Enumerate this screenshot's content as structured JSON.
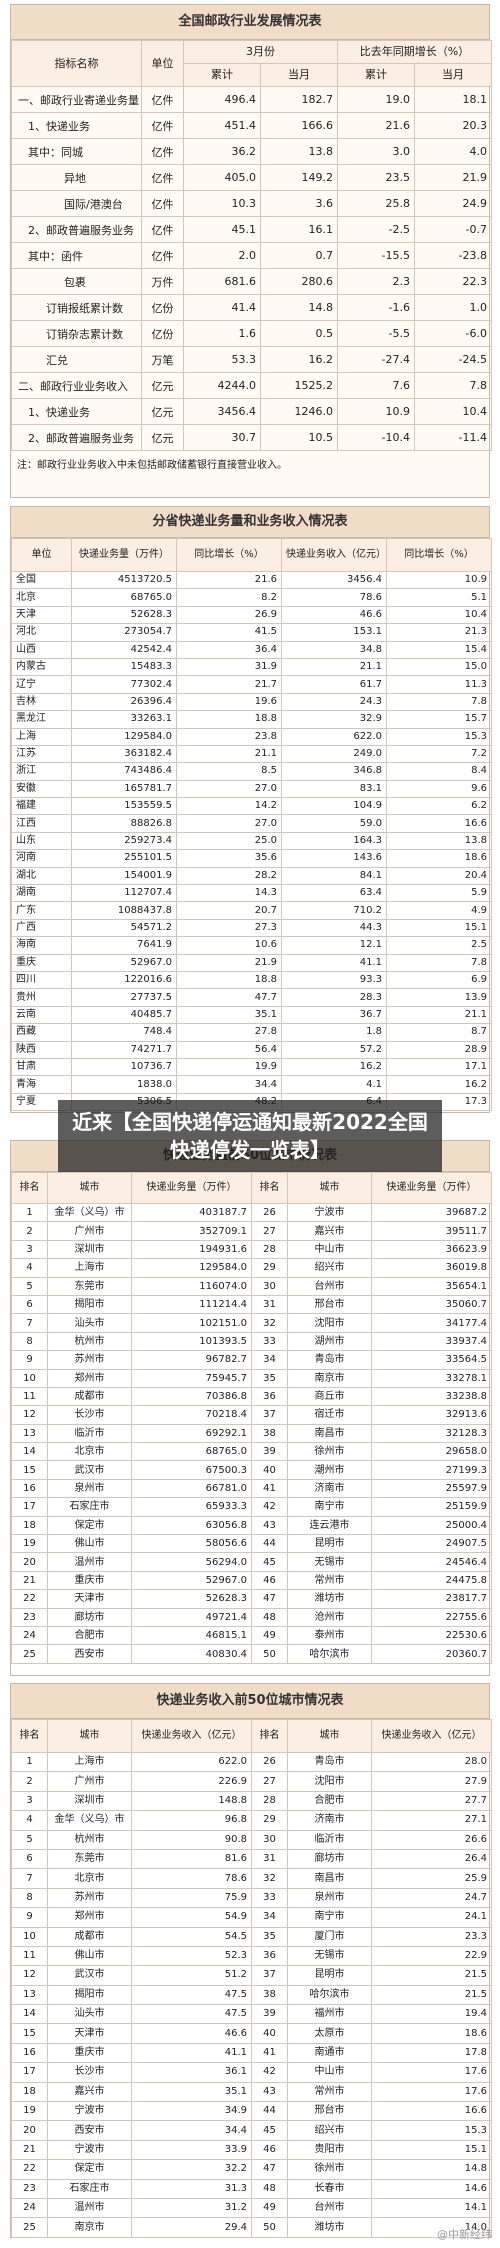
{
  "tables": [
    {
      "title": "全国邮政行业发展情况表",
      "header": [
        "指标名称",
        "单位",
        "3月份",
        "比去年同期增长（%）",
        "累计",
        "当月",
        "累计",
        "当月"
      ],
      "rows": [
        [
          "一、邮政行业寄递业务量",
          "亿件",
          "496.4",
          "182.7",
          "19.0",
          "18.1"
        ],
        [
          "1、快递业务",
          "亿件",
          "451.4",
          "166.6",
          "21.6",
          "20.3"
        ],
        [
          "其中：同城",
          "亿件",
          "36.2",
          "13.8",
          "3.0",
          "4.0"
        ],
        [
          "异地",
          "亿件",
          "405.0",
          "149.2",
          "23.5",
          "21.9"
        ],
        [
          "国际/港澳台",
          "亿件",
          "10.3",
          "3.6",
          "25.8",
          "24.9"
        ],
        [
          "2、邮政普遍服务业务",
          "亿件",
          "45.1",
          "16.1",
          "-2.5",
          "-0.7"
        ],
        [
          "其中：函件",
          "亿件",
          "2.0",
          "0.7",
          "-15.5",
          "-23.8"
        ],
        [
          "包裹",
          "万件",
          "681.6",
          "280.6",
          "2.3",
          "22.3"
        ],
        [
          "订销报纸累计数",
          "亿份",
          "41.4",
          "14.8",
          "-1.6",
          "1.0"
        ],
        [
          "订销杂志累计数",
          "亿份",
          "1.6",
          "0.5",
          "-5.5",
          "-6.0"
        ],
        [
          "汇兑",
          "万笔",
          "53.3",
          "16.2",
          "-27.4",
          "-24.5"
        ],
        [
          "二、邮政行业业务收入",
          "亿元",
          "4244.0",
          "1525.2",
          "7.6",
          "7.8"
        ],
        [
          "1、快递业务",
          "亿元",
          "3456.4",
          "1246.0",
          "10.9",
          "10.4"
        ],
        [
          "2、邮政普遍服务业务",
          "亿元",
          "30.7",
          "10.5",
          "-10.4",
          "-11.4"
        ]
      ],
      "note": "注：邮政行业业务收入中未包括邮政储蓄银行直接营业收入。"
    },
    {
      "title": "分省快递业务量和业务收入情况表",
      "header": [
        "单位",
        "快递业务量（万件）",
        "同比增长（%）",
        "快递业务收入（亿元）",
        "同比增长（%）"
      ],
      "rows": [
        [
          "全国",
          "4513720.5",
          "21.6",
          "3456.4",
          "10.9"
        ],
        [
          "北京",
          "68765.0",
          "8.2",
          "78.6",
          "5.1"
        ],
        [
          "天津",
          "52628.3",
          "26.9",
          "46.6",
          "10.4"
        ],
        [
          "河北",
          "273054.7",
          "41.5",
          "153.1",
          "21.3"
        ],
        [
          "山西",
          "42542.4",
          "36.4",
          "34.8",
          "15.4"
        ],
        [
          "内蒙古",
          "15483.3",
          "31.9",
          "21.1",
          "15.0"
        ],
        [
          "辽宁",
          "77302.4",
          "21.7",
          "61.7",
          "11.3"
        ],
        [
          "吉林",
          "26396.4",
          "19.6",
          "24.3",
          "7.8"
        ],
        [
          "黑龙江",
          "33263.1",
          "18.8",
          "32.9",
          "15.7"
        ],
        [
          "上海",
          "129584.0",
          "23.8",
          "622.0",
          "15.3"
        ],
        [
          "江苏",
          "363182.4",
          "21.1",
          "249.0",
          "7.2"
        ],
        [
          "浙江",
          "743486.4",
          "8.5",
          "346.8",
          "8.4"
        ],
        [
          "安徽",
          "165781.7",
          "27.0",
          "83.1",
          "9.6"
        ],
        [
          "福建",
          "153559.5",
          "14.2",
          "104.9",
          "6.2"
        ],
        [
          "江西",
          "88826.8",
          "27.0",
          "59.0",
          "16.6"
        ],
        [
          "山东",
          "259273.4",
          "25.0",
          "164.3",
          "13.8"
        ],
        [
          "河南",
          "255101.5",
          "35.6",
          "143.6",
          "18.6"
        ],
        [
          "湖北",
          "154001.9",
          "28.2",
          "84.1",
          "20.4"
        ],
        [
          "湖南",
          "112707.4",
          "14.3",
          "63.4",
          "5.9"
        ],
        [
          "广东",
          "1088437.8",
          "20.7",
          "710.2",
          "4.9"
        ],
        [
          "广西",
          "54571.2",
          "27.3",
          "44.3",
          "15.1"
        ],
        [
          "海南",
          "7641.9",
          "10.6",
          "12.1",
          "2.5"
        ],
        [
          "重庆",
          "52967.0",
          "21.9",
          "41.1",
          "7.8"
        ],
        [
          "四川",
          "122016.6",
          "18.8",
          "93.3",
          "6.9"
        ],
        [
          "贵州",
          "27737.5",
          "47.7",
          "28.3",
          "13.9"
        ],
        [
          "云南",
          "40485.7",
          "35.1",
          "36.7",
          "21.1"
        ],
        [
          "西藏",
          "748.4",
          "27.8",
          "1.8",
          "8.7"
        ],
        [
          "陕西",
          "74271.7",
          "56.4",
          "57.2",
          "28.9"
        ],
        [
          "甘肃",
          "10736.7",
          "19.9",
          "16.2",
          "17.1"
        ],
        [
          "青海",
          "1838.0",
          "34.4",
          "4.1",
          "16.2"
        ],
        [
          "宁夏",
          "5306.5",
          "48.2",
          "6.4",
          "17.3"
        ]
      ]
    },
    {
      "title": "快递业务量前50位城市情况表",
      "header": [
        "排名",
        "城市",
        "快递业务量（万件）",
        "排名",
        "城市",
        "快递业务量（万件）"
      ],
      "rows": [
        [
          "1",
          "金华（义乌）市",
          "403187.7",
          "26",
          "宁波市",
          "39687.2"
        ],
        [
          "2",
          "广州市",
          "352709.1",
          "27",
          "嘉兴市",
          "39511.7"
        ],
        [
          "3",
          "深圳市",
          "194931.6",
          "28",
          "中山市",
          "36623.9"
        ],
        [
          "4",
          "上海市",
          "129584.0",
          "29",
          "绍兴市",
          "36019.8"
        ],
        [
          "5",
          "东莞市",
          "116074.0",
          "30",
          "台州市",
          "35654.1"
        ],
        [
          "6",
          "揭阳市",
          "111214.4",
          "31",
          "邢台市",
          "35060.7"
        ],
        [
          "7",
          "汕头市",
          "102151.0",
          "32",
          "沈阳市",
          "34177.4"
        ],
        [
          "8",
          "杭州市",
          "101393.5",
          "33",
          "湖州市",
          "33937.4"
        ],
        [
          "9",
          "苏州市",
          "96782.7",
          "34",
          "青岛市",
          "33564.5"
        ],
        [
          "10",
          "郑州市",
          "75945.7",
          "35",
          "南京市",
          "33278.1"
        ],
        [
          "11",
          "成都市",
          "70386.8",
          "36",
          "商丘市",
          "33238.8"
        ],
        [
          "12",
          "长沙市",
          "70218.4",
          "37",
          "宿迁市",
          "32913.6"
        ],
        [
          "13",
          "临沂市",
          "69292.1",
          "38",
          "南昌市",
          "32128.3"
        ],
        [
          "14",
          "北京市",
          "68765.0",
          "39",
          "徐州市",
          "29658.0"
        ],
        [
          "15",
          "武汉市",
          "67500.3",
          "40",
          "潮州市",
          "27199.3"
        ],
        [
          "16",
          "泉州市",
          "66781.0",
          "41",
          "济南市",
          "25597.9"
        ],
        [
          "17",
          "石家庄市",
          "65933.3",
          "42",
          "南宁市",
          "25159.9"
        ],
        [
          "18",
          "保定市",
          "63056.8",
          "43",
          "连云港市",
          "25000.4"
        ],
        [
          "19",
          "佛山市",
          "58056.6",
          "44",
          "昆明市",
          "24907.5"
        ],
        [
          "20",
          "温州市",
          "56294.0",
          "45",
          "无锡市",
          "24546.4"
        ],
        [
          "21",
          "重庆市",
          "52967.0",
          "46",
          "常州市",
          "24475.8"
        ],
        [
          "22",
          "天津市",
          "52628.3",
          "47",
          "潍坊市",
          "23817.7"
        ],
        [
          "23",
          "廊坊市",
          "49721.4",
          "48",
          "沧州市",
          "22755.6"
        ],
        [
          "24",
          "合肥市",
          "46815.1",
          "49",
          "泰州市",
          "22530.6"
        ],
        [
          "25",
          "西安市",
          "40830.4",
          "50",
          "哈尔滨市",
          "20360.7"
        ]
      ]
    },
    {
      "title": "快递业务收入前50位城市情况表",
      "header": [
        "排名",
        "城市",
        "快递业务收入（亿元）",
        "排名",
        "城市",
        "快递业务收入（亿元）"
      ],
      "rows": [
        [
          "1",
          "上海市",
          "622.0",
          "26",
          "青岛市",
          "28.0"
        ],
        [
          "2",
          "广州市",
          "226.9",
          "27",
          "沈阳市",
          "27.9"
        ],
        [
          "3",
          "深圳市",
          "148.8",
          "28",
          "合肥市",
          "27.7"
        ],
        [
          "4",
          "金华（义乌）市",
          "96.8",
          "29",
          "济南市",
          "27.1"
        ],
        [
          "5",
          "杭州市",
          "90.8",
          "30",
          "临沂市",
          "26.6"
        ],
        [
          "6",
          "东莞市",
          "81.6",
          "31",
          "廊坊市",
          "26.4"
        ],
        [
          "7",
          "北京市",
          "78.6",
          "32",
          "南昌市",
          "25.9"
        ],
        [
          "8",
          "苏州市",
          "75.9",
          "33",
          "泉州市",
          "24.7"
        ],
        [
          "9",
          "郑州市",
          "54.9",
          "34",
          "南宁市",
          "24.1"
        ],
        [
          "10",
          "成都市",
          "54.5",
          "35",
          "厦门市",
          "23.3"
        ],
        [
          "11",
          "佛山市",
          "52.3",
          "36",
          "无锡市",
          "22.9"
        ],
        [
          "12",
          "武汉市",
          "51.2",
          "37",
          "昆明市",
          "21.5"
        ],
        [
          "13",
          "揭阳市",
          "47.5",
          "38",
          "哈尔滨市",
          "21.5"
        ],
        [
          "14",
          "汕头市",
          "47.5",
          "39",
          "福州市",
          "19.4"
        ],
        [
          "15",
          "天津市",
          "46.6",
          "40",
          "太原市",
          "18.6"
        ],
        [
          "16",
          "重庆市",
          "41.1",
          "41",
          "南通市",
          "17.8"
        ],
        [
          "17",
          "长沙市",
          "36.1",
          "42",
          "中山市",
          "17.6"
        ],
        [
          "18",
          "嘉兴市",
          "35.1",
          "43",
          "常州市",
          "17.6"
        ],
        [
          "19",
          "宁波市",
          "34.9",
          "44",
          "邢台市",
          "16.6"
        ],
        [
          "20",
          "西安市",
          "34.4",
          "45",
          "绍兴市",
          "15.3"
        ],
        [
          "21",
          "宁波市",
          "33.9",
          "46",
          "贵阳市",
          "15.1"
        ],
        [
          "22",
          "保定市",
          "32.2",
          "47",
          "徐州市",
          "14.8"
        ],
        [
          "23",
          "石家庄市",
          "31.3",
          "48",
          "长春市",
          "14.6"
        ],
        [
          "24",
          "温州市",
          "31.2",
          "49",
          "台州市",
          "14.1"
        ],
        [
          "25",
          "南京市",
          "29.4",
          "50",
          "潍坊市",
          "14.0"
        ]
      ]
    }
  ],
  "banner": "近来【全国快递停运通知最新2022全国快递停发一览表】",
  "watermark": "@中新经纬"
}
